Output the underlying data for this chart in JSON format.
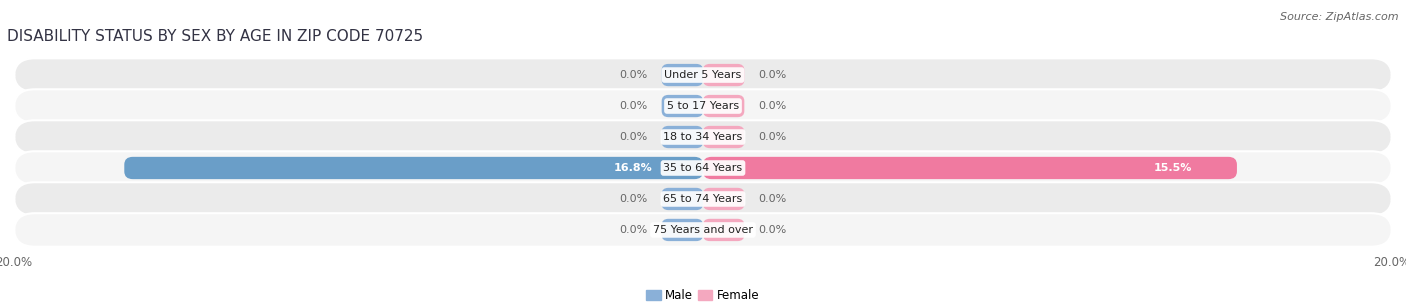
{
  "title": "DISABILITY STATUS BY SEX BY AGE IN ZIP CODE 70725",
  "source": "Source: ZipAtlas.com",
  "categories": [
    "Under 5 Years",
    "5 to 17 Years",
    "18 to 34 Years",
    "35 to 64 Years",
    "65 to 74 Years",
    "75 Years and over"
  ],
  "male_values": [
    0.0,
    0.0,
    0.0,
    16.8,
    0.0,
    0.0
  ],
  "female_values": [
    0.0,
    0.0,
    0.0,
    15.5,
    0.0,
    0.0
  ],
  "xlim": 20.0,
  "male_color": "#8ab0d8",
  "male_color_full": "#6a9ec8",
  "female_color": "#f4a8bf",
  "female_color_full": "#f07aa0",
  "male_label": "Male",
  "female_label": "Female",
  "title_fontsize": 11,
  "source_fontsize": 8,
  "label_fontsize": 8.5,
  "tick_fontsize": 8.5,
  "axis_label_color": "#666666",
  "category_fontsize": 8,
  "value_fontsize": 8,
  "row_bg_color": "#ebebeb",
  "row_bg_alt_color": "#f5f5f5",
  "stub_size": 1.2,
  "bar_height": 0.72
}
